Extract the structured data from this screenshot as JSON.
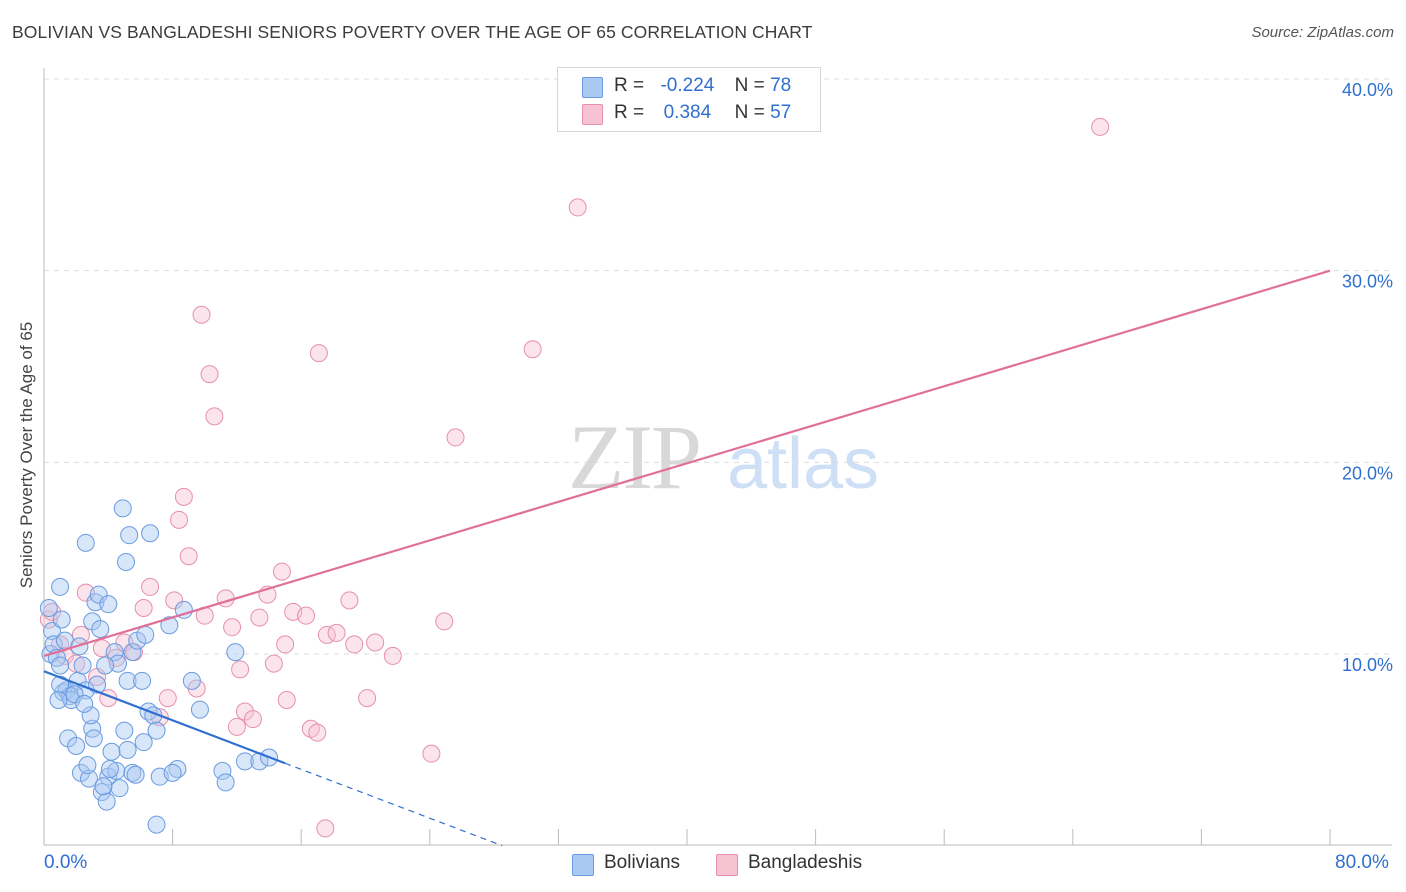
{
  "title": "BOLIVIAN VS BANGLADESHI SENIORS POVERTY OVER THE AGE OF 65 CORRELATION CHART",
  "source": "Source: ZipAtlas.com",
  "watermark": {
    "zip": "ZIP",
    "atlas": "atlas"
  },
  "legend_top": [
    {
      "r_label": "R =",
      "r_value": "-0.224",
      "n_label": "N =",
      "n_value": "78"
    },
    {
      "r_label": "R =",
      "r_value": "0.384",
      "n_label": "N =",
      "n_value": "57"
    }
  ],
  "legend_bottom": [
    "Bolivians",
    "Bangladeshis"
  ],
  "colors": {
    "blue_fill": "#a9c8f2",
    "blue_stroke": "#6a9be0",
    "blue_line": "#2f6fd0",
    "pink_fill": "#f7c3d3",
    "pink_stroke": "#e690ac",
    "pink_line": "#e07098",
    "axis_text": "#2f6fd0",
    "grid": "#dddddd"
  },
  "chart_data": {
    "type": "scatter",
    "title": "BOLIVIAN VS BANGLADESHI SENIORS POVERTY OVER THE AGE OF 65 CORRELATION CHART",
    "xlabel": "",
    "ylabel": "Seniors Poverty Over the Age of 65",
    "xlim": [
      0,
      80
    ],
    "ylim": [
      0,
      41
    ],
    "x_tick_labels": [
      "0.0%",
      "80.0%"
    ],
    "y_ticks": [
      10,
      20,
      30,
      40
    ],
    "y_tick_labels": [
      "10.0%",
      "20.0%",
      "30.0%",
      "40.0%"
    ],
    "grid": true,
    "series": [
      {
        "name": "Bolivians",
        "r": -0.224,
        "n": 78,
        "trend": {
          "x": [
            0,
            15
          ],
          "y": [
            9.1,
            4.3
          ]
        },
        "trend_extension": {
          "x": [
            15,
            28.5
          ],
          "y": [
            4.3,
            0
          ]
        },
        "points": [
          [
            0.3,
            12.4
          ],
          [
            0.4,
            10.0
          ],
          [
            0.5,
            11.2
          ],
          [
            0.6,
            10.5
          ],
          [
            0.8,
            9.8
          ],
          [
            1.0,
            9.4
          ],
          [
            1.2,
            8.0
          ],
          [
            1.4,
            8.1
          ],
          [
            1.6,
            7.8
          ],
          [
            1.0,
            13.5
          ],
          [
            1.5,
            5.6
          ],
          [
            1.7,
            7.6
          ],
          [
            2.1,
            8.6
          ],
          [
            2.4,
            9.4
          ],
          [
            2.6,
            8.1
          ],
          [
            2.0,
            5.2
          ],
          [
            2.3,
            3.8
          ],
          [
            2.8,
            3.5
          ],
          [
            3.0,
            6.1
          ],
          [
            3.3,
            8.4
          ],
          [
            3.6,
            2.8
          ],
          [
            3.9,
            2.3
          ],
          [
            4.0,
            3.6
          ],
          [
            4.2,
            4.9
          ],
          [
            4.5,
            3.9
          ],
          [
            4.7,
            3.0
          ],
          [
            5.0,
            6.0
          ],
          [
            5.2,
            5.0
          ],
          [
            5.5,
            3.8
          ],
          [
            4.4,
            10.1
          ],
          [
            3.0,
            11.7
          ],
          [
            3.2,
            12.7
          ],
          [
            3.4,
            13.1
          ],
          [
            2.6,
            15.8
          ],
          [
            4.0,
            12.6
          ],
          [
            5.2,
            8.6
          ],
          [
            5.5,
            10.1
          ],
          [
            5.8,
            10.7
          ],
          [
            6.1,
            8.6
          ],
          [
            6.5,
            7.0
          ],
          [
            6.8,
            6.8
          ],
          [
            7.0,
            6.0
          ],
          [
            3.7,
            3.1
          ],
          [
            4.6,
            9.5
          ],
          [
            6.3,
            11.0
          ],
          [
            7.2,
            3.6
          ],
          [
            7.0,
            1.1
          ],
          [
            8.7,
            12.3
          ],
          [
            9.2,
            8.6
          ],
          [
            9.7,
            7.1
          ],
          [
            11.1,
            3.9
          ],
          [
            11.3,
            3.3
          ],
          [
            12.5,
            4.4
          ],
          [
            13.4,
            4.4
          ],
          [
            14.0,
            4.6
          ],
          [
            11.9,
            10.1
          ],
          [
            3.8,
            9.4
          ],
          [
            2.9,
            6.8
          ],
          [
            1.9,
            7.9
          ],
          [
            4.9,
            17.6
          ],
          [
            5.1,
            14.8
          ],
          [
            5.3,
            16.2
          ],
          [
            1.0,
            8.4
          ],
          [
            1.3,
            10.7
          ],
          [
            2.5,
            7.4
          ],
          [
            3.1,
            5.6
          ],
          [
            0.9,
            7.6
          ],
          [
            6.6,
            16.3
          ],
          [
            8.3,
            4.0
          ],
          [
            7.8,
            11.5
          ],
          [
            3.5,
            11.3
          ],
          [
            2.2,
            10.4
          ],
          [
            1.1,
            11.8
          ],
          [
            4.1,
            4.0
          ],
          [
            6.2,
            5.4
          ],
          [
            8.0,
            3.8
          ],
          [
            2.7,
            4.2
          ],
          [
            5.7,
            3.7
          ]
        ]
      },
      {
        "name": "Bangladeshis",
        "r": 0.384,
        "n": 57,
        "trend": {
          "x": [
            0,
            80
          ],
          "y": [
            9.9,
            30.0
          ]
        },
        "points": [
          [
            0.3,
            11.8
          ],
          [
            0.5,
            12.2
          ],
          [
            1.0,
            10.5
          ],
          [
            1.3,
            9.9
          ],
          [
            2.0,
            9.5
          ],
          [
            2.3,
            11.0
          ],
          [
            2.6,
            13.2
          ],
          [
            3.3,
            8.8
          ],
          [
            3.6,
            10.3
          ],
          [
            4.0,
            7.7
          ],
          [
            4.5,
            9.8
          ],
          [
            5.0,
            10.6
          ],
          [
            5.6,
            10.1
          ],
          [
            6.2,
            12.4
          ],
          [
            6.6,
            13.5
          ],
          [
            7.2,
            6.7
          ],
          [
            7.7,
            7.7
          ],
          [
            8.1,
            12.8
          ],
          [
            8.4,
            17.0
          ],
          [
            8.7,
            18.2
          ],
          [
            9.0,
            15.1
          ],
          [
            9.5,
            8.2
          ],
          [
            10.0,
            12.0
          ],
          [
            10.3,
            24.6
          ],
          [
            10.6,
            22.4
          ],
          [
            11.3,
            12.9
          ],
          [
            11.7,
            11.4
          ],
          [
            12.2,
            9.2
          ],
          [
            12.5,
            7.0
          ],
          [
            13.0,
            6.6
          ],
          [
            13.4,
            11.9
          ],
          [
            13.9,
            13.1
          ],
          [
            14.3,
            9.5
          ],
          [
            14.8,
            14.3
          ],
          [
            15.1,
            7.6
          ],
          [
            15.5,
            12.2
          ],
          [
            16.3,
            12.0
          ],
          [
            16.6,
            6.1
          ],
          [
            17.1,
            25.7
          ],
          [
            17.6,
            11.0
          ],
          [
            18.2,
            11.1
          ],
          [
            19.0,
            12.8
          ],
          [
            19.3,
            10.5
          ],
          [
            20.1,
            7.7
          ],
          [
            20.6,
            10.6
          ],
          [
            21.7,
            9.9
          ],
          [
            24.1,
            4.8
          ],
          [
            24.9,
            11.7
          ],
          [
            25.6,
            21.3
          ],
          [
            17.5,
            0.9
          ],
          [
            9.8,
            27.7
          ],
          [
            15.0,
            10.5
          ],
          [
            12.0,
            6.2
          ],
          [
            17.0,
            5.9
          ],
          [
            30.4,
            25.9
          ],
          [
            33.2,
            33.3
          ],
          [
            65.7,
            37.5
          ]
        ]
      }
    ]
  }
}
